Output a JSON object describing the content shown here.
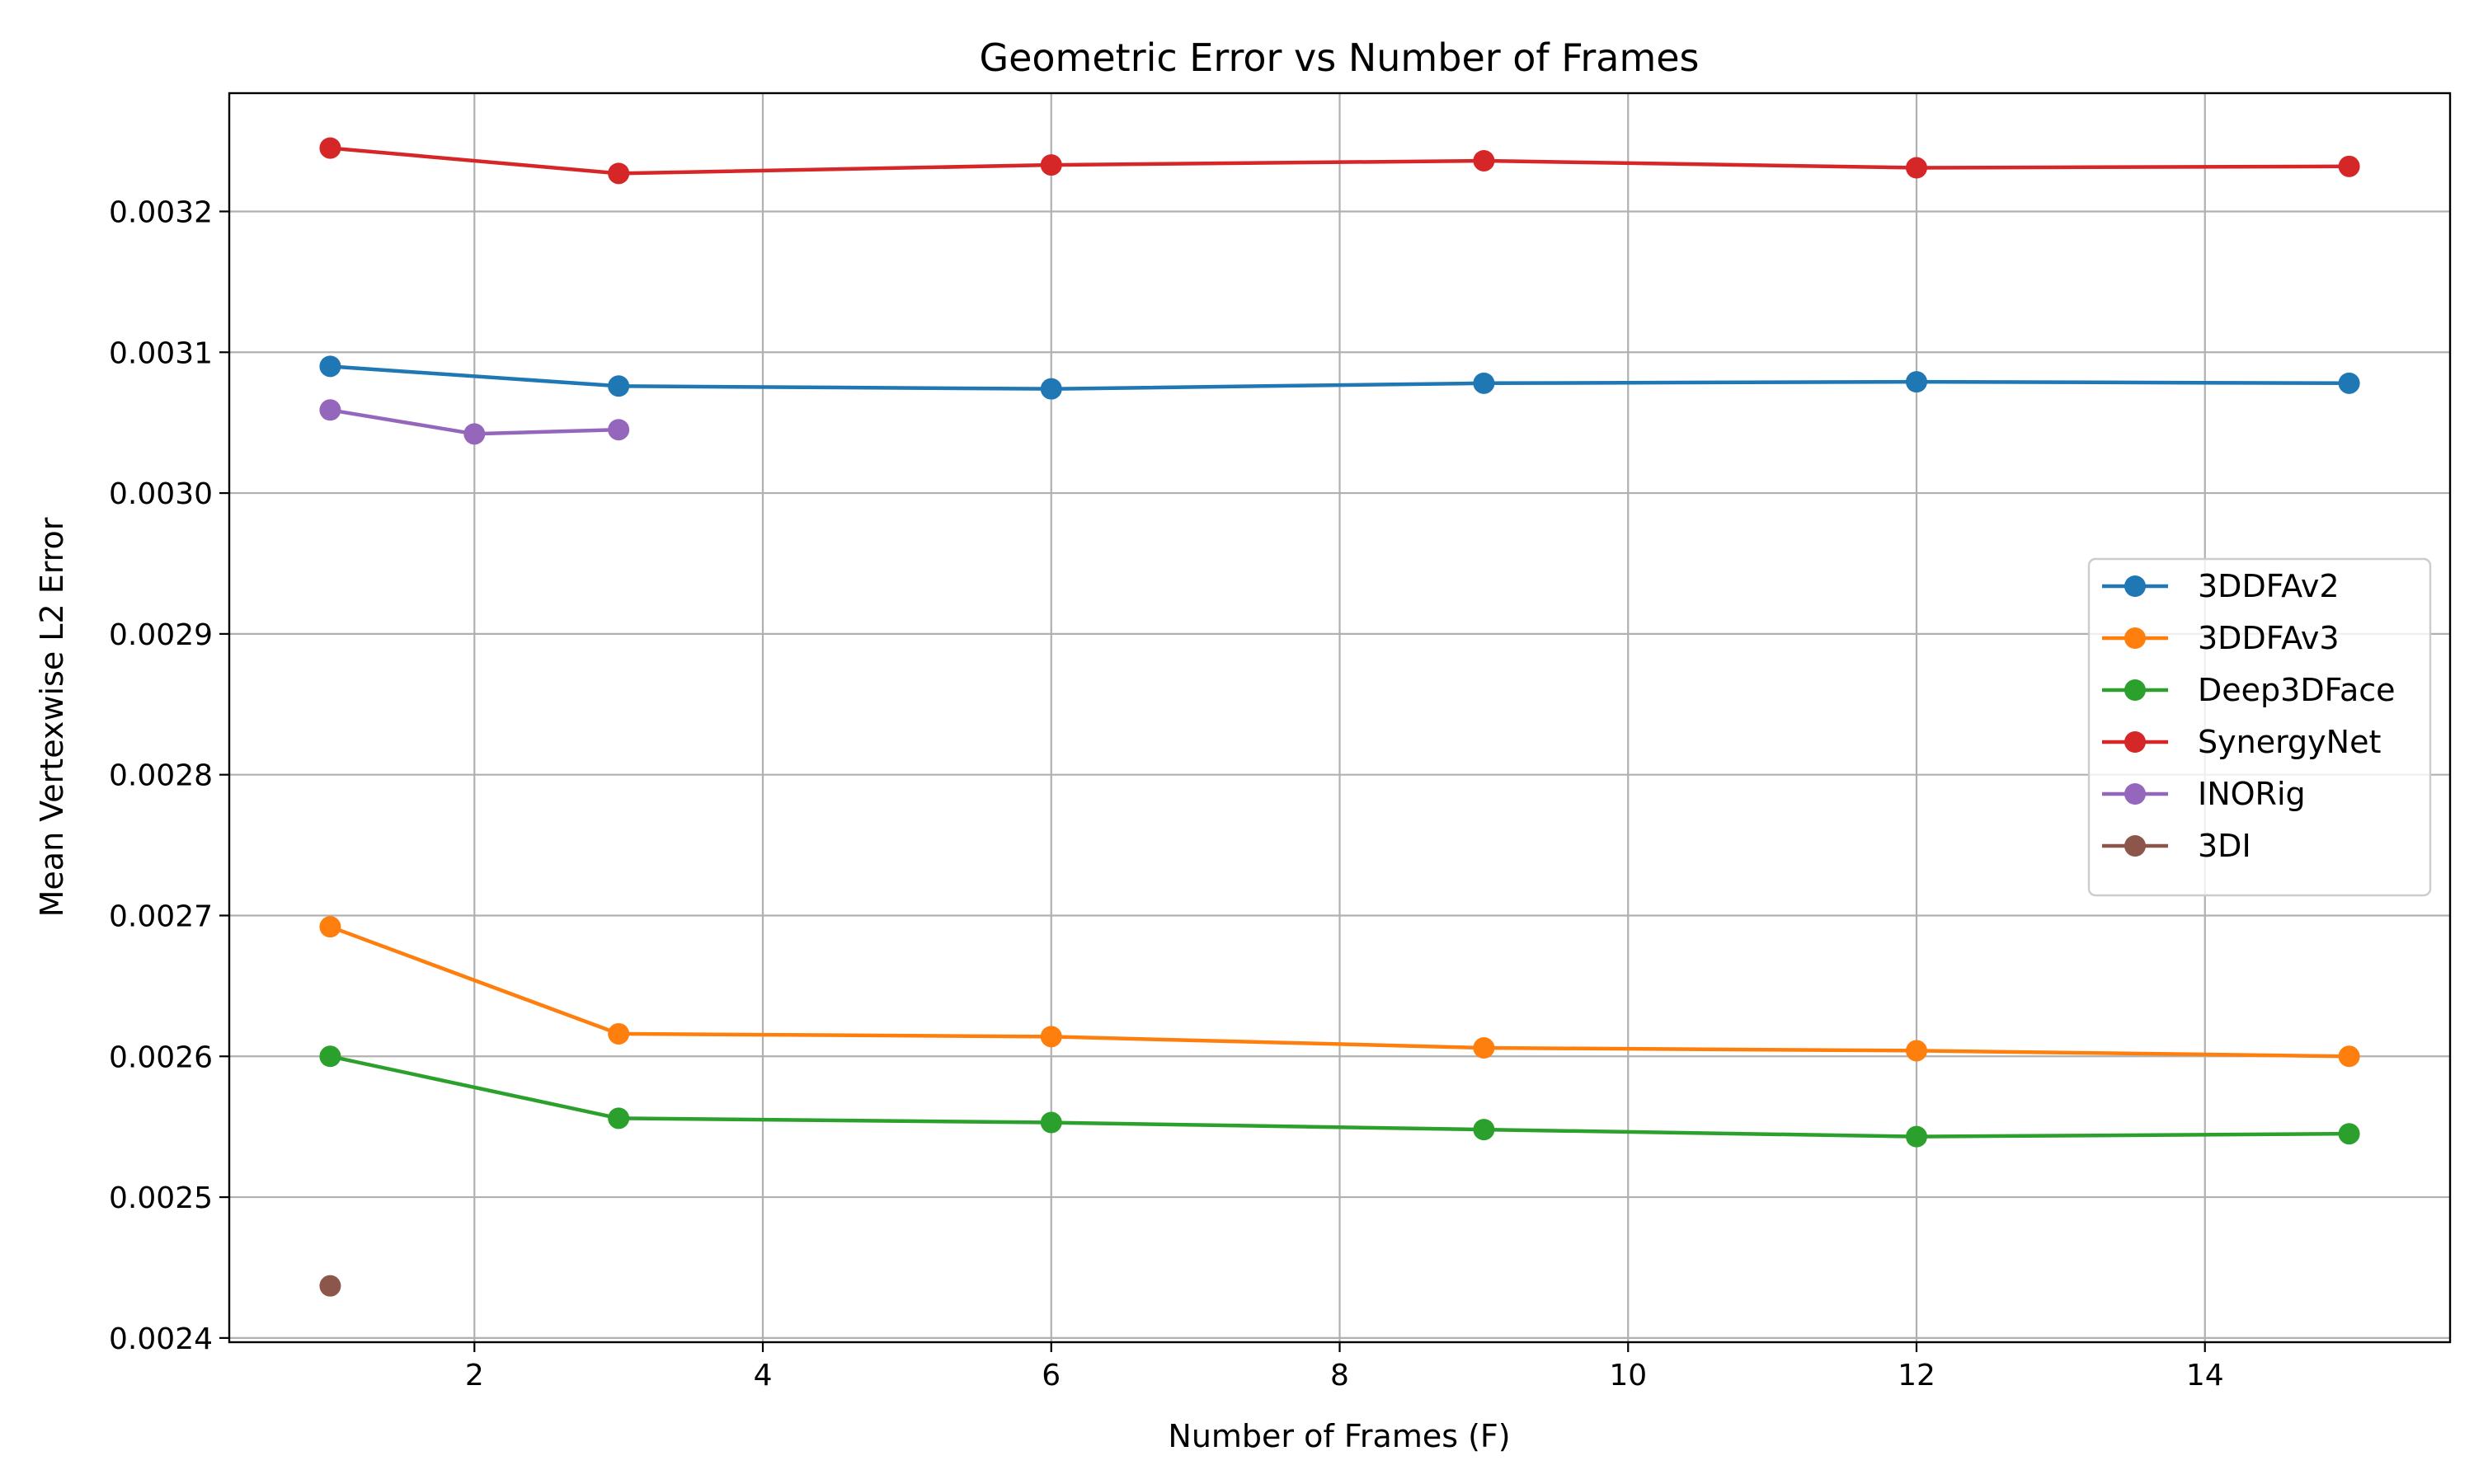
{
  "chart_data": {
    "type": "line",
    "title": "Geometric Error vs Number of Frames",
    "xlabel": "Number of Frames (F)",
    "ylabel": "Mean Vertexwise L2 Error",
    "xlim": [
      0.3,
      15.7
    ],
    "ylim": [
      0.002397,
      0.003284
    ],
    "xticks": [
      2,
      4,
      6,
      8,
      10,
      12,
      14
    ],
    "xtick_labels": [
      "2",
      "4",
      "6",
      "8",
      "10",
      "12",
      "14"
    ],
    "yticks": [
      0.0024,
      0.0025,
      0.0026,
      0.0027,
      0.0028,
      0.0029,
      0.003,
      0.0031,
      0.0032
    ],
    "ytick_labels": [
      "0.0024",
      "0.0025",
      "0.0026",
      "0.0027",
      "0.0028",
      "0.0029",
      "0.0030",
      "0.0031",
      "0.0032"
    ],
    "grid": true,
    "legend_position": "center-right",
    "series": [
      {
        "name": "3DDFAv2",
        "color": "#1f77b4",
        "x": [
          1,
          3,
          6,
          9,
          12,
          15
        ],
        "y": [
          0.00309,
          0.003076,
          0.003074,
          0.003078,
          0.003079,
          0.003078
        ]
      },
      {
        "name": "3DDFAv3",
        "color": "#ff7f0e",
        "x": [
          1,
          3,
          6,
          9,
          12,
          15
        ],
        "y": [
          0.002692,
          0.002616,
          0.002614,
          0.002606,
          0.002604,
          0.0026
        ]
      },
      {
        "name": "Deep3DFace",
        "color": "#2ca02c",
        "x": [
          1,
          3,
          6,
          9,
          12,
          15
        ],
        "y": [
          0.0026,
          0.002556,
          0.002553,
          0.002548,
          0.002543,
          0.002545
        ]
      },
      {
        "name": "SynergyNet",
        "color": "#d62728",
        "x": [
          1,
          3,
          6,
          9,
          12,
          15
        ],
        "y": [
          0.003245,
          0.003227,
          0.003233,
          0.003236,
          0.003231,
          0.003232
        ]
      },
      {
        "name": "INORig",
        "color": "#9467bd",
        "x": [
          1,
          2,
          3
        ],
        "y": [
          0.003059,
          0.003042,
          0.003045
        ]
      },
      {
        "name": "3DI",
        "color": "#8c564b",
        "x": [
          1
        ],
        "y": [
          0.002437
        ]
      }
    ]
  }
}
